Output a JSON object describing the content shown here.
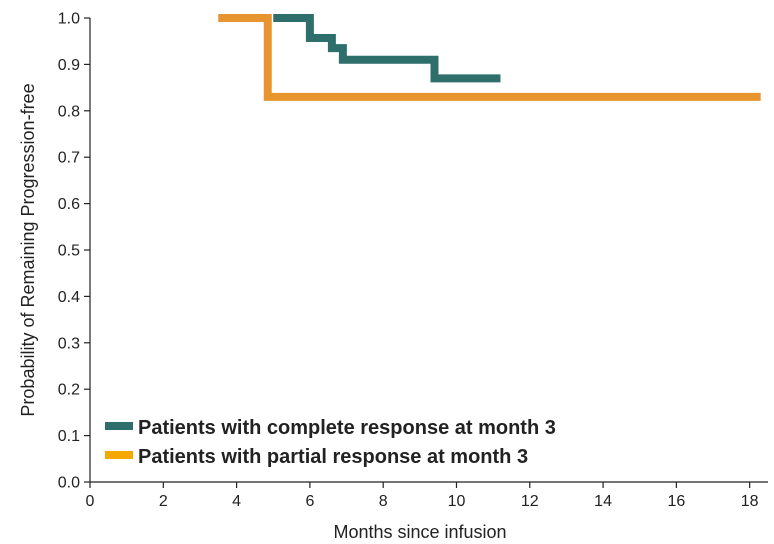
{
  "chart_data": {
    "type": "line",
    "step": true,
    "xlabel": "Months since infusion",
    "ylabel": "Probability of Remaining Progression-free",
    "xlim": [
      0,
      18.5
    ],
    "ylim": [
      0,
      1.0
    ],
    "xticks": [
      "0",
      "2",
      "4",
      "6",
      "8",
      "10",
      "12",
      "14",
      "16",
      "18"
    ],
    "yticks": [
      "0.0",
      "0.1",
      "0.2",
      "0.3",
      "0.4",
      "0.5",
      "0.6",
      "0.7",
      "0.8",
      "0.9",
      "1.0"
    ],
    "grid": false,
    "legend_position": "bottom-left",
    "series": [
      {
        "name": "Patients with complete response at month 3",
        "color": "#2f6f6b",
        "x": [
          5.0,
          5.7,
          6.0,
          6.6,
          6.9,
          9.3,
          9.4,
          11.2
        ],
        "y": [
          1.0,
          1.0,
          0.957,
          0.935,
          0.91,
          0.91,
          0.87,
          0.87
        ]
      },
      {
        "name": "Patients with partial response at month 3",
        "color": "#e8952f",
        "legend_color": "#f5a800",
        "x": [
          3.5,
          4.85,
          4.85,
          18.3
        ],
        "y": [
          1.0,
          1.0,
          0.83,
          0.83
        ]
      }
    ]
  }
}
